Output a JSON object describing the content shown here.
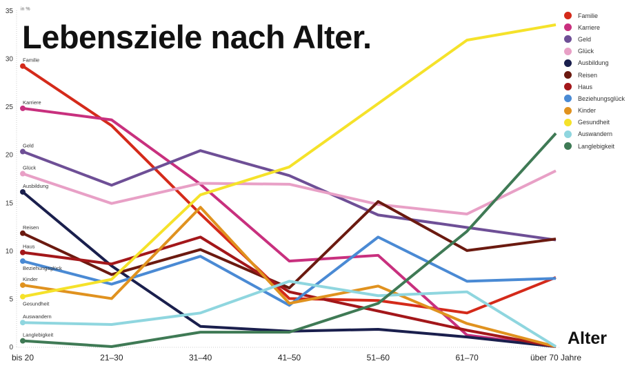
{
  "chart_data": {
    "type": "line",
    "title": "Lebensziele nach Alter.",
    "xlabel": "Alter",
    "ylabel": "in %",
    "ylim": [
      0,
      35
    ],
    "yticks": [
      0,
      5,
      10,
      15,
      20,
      25,
      30,
      35
    ],
    "categories": [
      "bis 20",
      "21–30",
      "31–40",
      "41–50",
      "51–60",
      "61–70",
      "über 70 Jahre"
    ],
    "grid": false,
    "legend": "right",
    "series": [
      {
        "name": "Familie",
        "color": "#d42a1a",
        "values": [
          29.2,
          23.0,
          13.8,
          5.0,
          4.8,
          3.5,
          7.2
        ]
      },
      {
        "name": "Karriere",
        "color": "#c8307e",
        "values": [
          24.8,
          23.6,
          16.9,
          8.9,
          9.5,
          1.2,
          0
        ]
      },
      {
        "name": "Geld",
        "color": "#6e4f96",
        "values": [
          20.3,
          16.8,
          20.4,
          17.8,
          13.7,
          12.4,
          11.1
        ]
      },
      {
        "name": "Glück",
        "color": "#e8a0c6",
        "values": [
          18.0,
          14.9,
          17.0,
          16.9,
          14.8,
          13.8,
          18.3
        ]
      },
      {
        "name": "Ausbildung",
        "color": "#1a1f4d",
        "values": [
          16.1,
          8.4,
          2.1,
          1.6,
          1.8,
          1.0,
          0
        ]
      },
      {
        "name": "Reisen",
        "color": "#6b1a10",
        "values": [
          11.8,
          7.5,
          10.1,
          6.1,
          15.1,
          10.0,
          11.2
        ]
      },
      {
        "name": "Haus",
        "color": "#a3171a",
        "values": [
          9.8,
          8.6,
          11.4,
          5.7,
          3.7,
          1.7,
          0
        ]
      },
      {
        "name": "Beziehungsglück",
        "color": "#4a8ad4",
        "values": [
          8.9,
          6.5,
          9.4,
          4.3,
          11.4,
          6.8,
          7.1
        ]
      },
      {
        "name": "Kinder",
        "color": "#e0921f",
        "values": [
          6.4,
          5.0,
          14.5,
          4.5,
          6.3,
          2.4,
          0
        ]
      },
      {
        "name": "Gesundheit",
        "color": "#f5e22a",
        "values": [
          5.2,
          7.0,
          15.8,
          18.7,
          25.3,
          31.9,
          33.5
        ]
      },
      {
        "name": "Auswandern",
        "color": "#8fd6df",
        "values": [
          2.5,
          2.3,
          3.5,
          6.8,
          5.3,
          5.7,
          0
        ]
      },
      {
        "name": "Langlebigkeit",
        "color": "#3f7a55",
        "values": [
          0.6,
          0.0,
          1.5,
          1.5,
          4.5,
          12.0,
          22.2
        ]
      }
    ]
  }
}
